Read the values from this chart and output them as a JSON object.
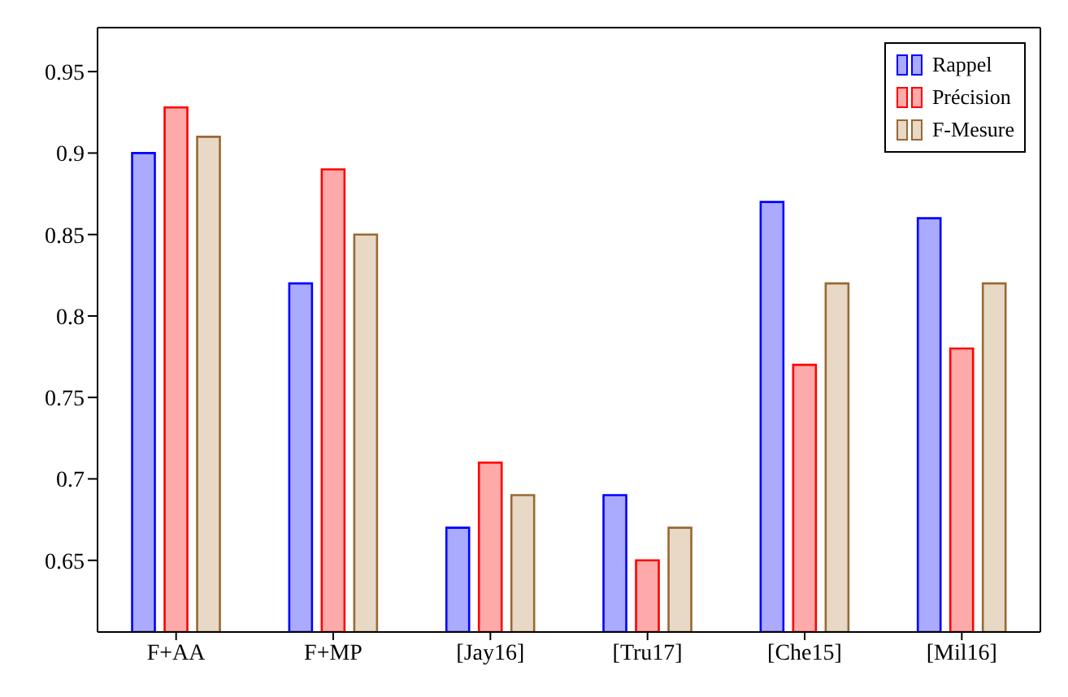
{
  "chart_data": {
    "type": "bar",
    "categories": [
      "F+AA",
      "F+MP",
      "[Jay16]",
      "[Tru17]",
      "[Che15]",
      "[Mil16]"
    ],
    "series": [
      {
        "name": "Rappel",
        "color": "#aaaaff",
        "values": [
          0.9,
          0.82,
          0.67,
          0.69,
          0.87,
          0.86
        ]
      },
      {
        "name": "Précision",
        "color": "#ffaaaa",
        "values": [
          0.928,
          0.89,
          0.71,
          0.65,
          0.77,
          0.78
        ]
      },
      {
        "name": "F-Mesure",
        "color": "#e8d8c6",
        "values": [
          0.91,
          0.85,
          0.69,
          0.67,
          0.82,
          0.82
        ]
      }
    ],
    "ylim": [
      0.606,
      0.977
    ],
    "yticks": [
      0.65,
      0.7,
      0.75,
      0.8,
      0.85,
      0.9,
      0.95
    ],
    "legend": "top right"
  }
}
